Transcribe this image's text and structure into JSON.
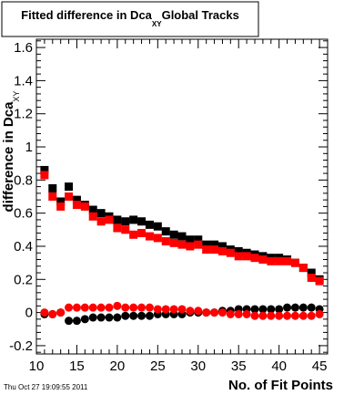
{
  "chart_data": {
    "type": "scatter",
    "title_main": "Fitted difference in Dca",
    "title_sub": "XY",
    "title_tail": "Global Tracks",
    "xlabel": "No. of Fit Points",
    "ylabel_main": "difference in Dca",
    "ylabel_sub": "XY",
    "timestamp": "Thu Oct 27 19:09:55 2011",
    "xlim": [
      10,
      46
    ],
    "ylim": [
      -0.25,
      1.65
    ],
    "x_ticks": [
      10,
      15,
      20,
      25,
      30,
      35,
      40,
      45
    ],
    "y_ticks": [
      -0.2,
      0,
      0.2,
      0.4,
      0.6,
      0.8,
      1,
      1.2,
      1.4,
      1.6
    ],
    "x_tick_labels": [
      "10",
      "15",
      "20",
      "25",
      "30",
      "35",
      "40",
      "45"
    ],
    "y_tick_labels": [
      "-0.2",
      "0",
      "0.2",
      "0.4",
      "0.6",
      "0.8",
      "1",
      "1.2",
      "1.4",
      "1.6"
    ],
    "grid": false,
    "colors": {
      "black": "#000000",
      "red": "#ff0000"
    },
    "x": [
      11,
      12,
      13,
      14,
      15,
      16,
      17,
      18,
      19,
      20,
      21,
      22,
      23,
      24,
      25,
      26,
      27,
      28,
      29,
      30,
      31,
      32,
      33,
      34,
      35,
      36,
      37,
      38,
      39,
      40,
      41,
      42,
      43,
      44,
      45
    ],
    "series": [
      {
        "marker": "square",
        "color": "#000000",
        "values": [
          0.86,
          0.75,
          0.67,
          0.76,
          0.68,
          0.65,
          0.62,
          0.6,
          0.58,
          0.56,
          0.55,
          0.56,
          0.55,
          0.53,
          0.52,
          0.49,
          0.47,
          0.46,
          0.44,
          0.44,
          0.41,
          0.41,
          0.4,
          0.38,
          0.37,
          0.36,
          0.35,
          0.34,
          0.33,
          0.33,
          0.32,
          0.3,
          0.27,
          0.24,
          0.2
        ]
      },
      {
        "marker": "square",
        "color": "#ff0000",
        "values": [
          0.83,
          0.7,
          0.64,
          0.7,
          0.65,
          0.64,
          0.58,
          0.55,
          0.56,
          0.51,
          0.5,
          0.47,
          0.48,
          0.46,
          0.45,
          0.43,
          0.42,
          0.41,
          0.4,
          0.41,
          0.38,
          0.38,
          0.37,
          0.36,
          0.34,
          0.34,
          0.33,
          0.32,
          0.31,
          0.31,
          0.31,
          0.3,
          0.27,
          0.21,
          0.19
        ]
      },
      {
        "marker": "circle",
        "color": "#000000",
        "values": [
          -0.01,
          -0.01,
          0.0,
          -0.05,
          -0.05,
          -0.04,
          -0.03,
          -0.03,
          -0.03,
          -0.03,
          -0.02,
          -0.02,
          -0.02,
          -0.02,
          -0.01,
          -0.01,
          -0.01,
          -0.01,
          0.0,
          0.0,
          0.0,
          0.0,
          0.01,
          0.01,
          0.02,
          0.02,
          0.02,
          0.02,
          0.02,
          0.02,
          0.03,
          0.03,
          0.03,
          0.03,
          0.02
        ]
      },
      {
        "marker": "circle",
        "color": "#ff0000",
        "values": [
          0.0,
          -0.01,
          0.0,
          0.03,
          0.03,
          0.03,
          0.03,
          0.03,
          0.03,
          0.04,
          0.03,
          0.03,
          0.03,
          0.03,
          0.02,
          0.02,
          0.02,
          0.02,
          0.01,
          0.01,
          0.0,
          0.0,
          0.0,
          -0.01,
          -0.01,
          -0.01,
          -0.02,
          -0.02,
          -0.02,
          -0.02,
          -0.02,
          -0.02,
          -0.02,
          -0.02,
          -0.01
        ]
      }
    ]
  }
}
